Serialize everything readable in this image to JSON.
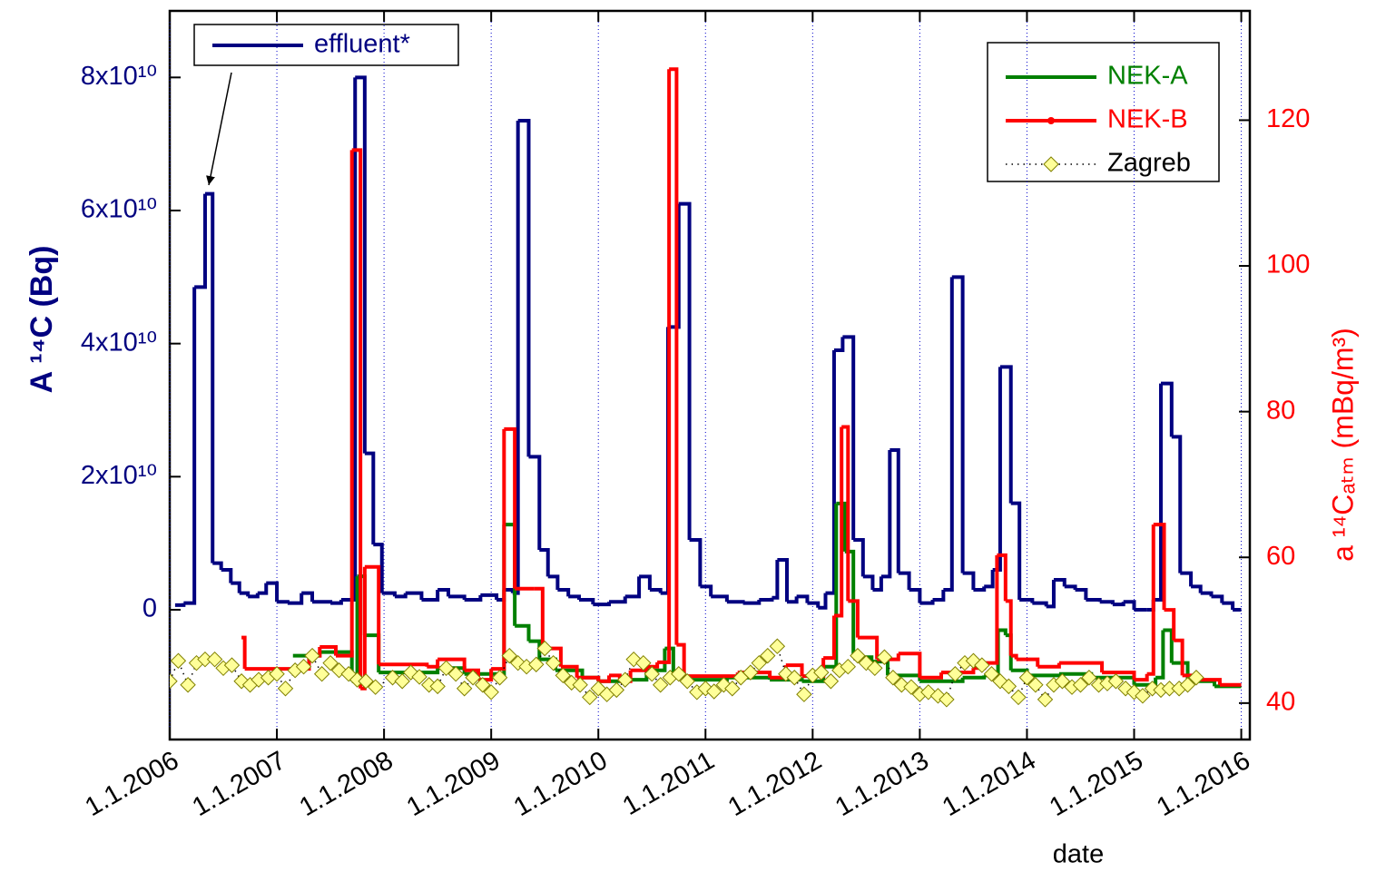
{
  "chart_data": {
    "type": "line",
    "xlabel": "date",
    "ylabel": "A ¹⁴C (Bq)",
    "y2label": "a ¹⁴Cₐₜₘ (mBq/m³)",
    "xlim": [
      2006,
      2016.08
    ],
    "xticks": [
      {
        "value": 2006,
        "label": "1.1.2006"
      },
      {
        "value": 2007,
        "label": "1.1.2007"
      },
      {
        "value": 2008,
        "label": "1.1.2008"
      },
      {
        "value": 2009,
        "label": "1.1.2009"
      },
      {
        "value": 2010,
        "label": "1.1.2010"
      },
      {
        "value": 2011,
        "label": "1.1.2011"
      },
      {
        "value": 2012,
        "label": "1.1.2012"
      },
      {
        "value": 2013,
        "label": "1.1.2013"
      },
      {
        "value": 2014,
        "label": "1.1.2014"
      },
      {
        "value": 2015,
        "label": "1.1.2015"
      },
      {
        "value": 2016,
        "label": "1.1.2016"
      }
    ],
    "ylim": [
      -19500000000.0,
      90000000000.0
    ],
    "yticks": [
      0,
      {
        "value": 20000000000.0,
        "label": "2x10¹⁰"
      },
      {
        "value": 40000000000.0,
        "label": "4x10¹⁰"
      },
      {
        "value": 60000000000.0,
        "label": "6x10¹⁰"
      },
      {
        "value": 80000000000.0,
        "label": "8x10¹⁰"
      }
    ],
    "y2lim": [
      35,
      135
    ],
    "y2ticks": [
      40,
      60,
      80,
      100,
      120
    ],
    "xgrid": true,
    "series": [
      {
        "name": "effluent*",
        "color": "#000080",
        "axis": "y",
        "line_style": "step",
        "x": [
          2006.05,
          2006.13,
          2006.23,
          2006.33,
          2006.4,
          2006.48,
          2006.57,
          2006.65,
          2006.73,
          2006.82,
          2006.9,
          2007.0,
          2007.1,
          2007.23,
          2007.33,
          2007.5,
          2007.6,
          2007.73,
          2007.82,
          2007.9,
          2007.98,
          2008.1,
          2008.2,
          2008.35,
          2008.5,
          2008.6,
          2008.75,
          2008.9,
          2009.05,
          2009.12,
          2009.2,
          2009.25,
          2009.35,
          2009.45,
          2009.53,
          2009.62,
          2009.72,
          2009.82,
          2009.95,
          2010.1,
          2010.25,
          2010.38,
          2010.48,
          2010.58,
          2010.65,
          2010.75,
          2010.85,
          2010.95,
          2011.05,
          2011.2,
          2011.35,
          2011.5,
          2011.62,
          2011.67,
          2011.76,
          2011.85,
          2011.95,
          2012.05,
          2012.12,
          2012.2,
          2012.28,
          2012.38,
          2012.47,
          2012.56,
          2012.64,
          2012.72,
          2012.8,
          2012.9,
          2013.0,
          2013.12,
          2013.22,
          2013.3,
          2013.4,
          2013.5,
          2013.6,
          2013.68,
          2013.75,
          2013.85,
          2013.93,
          2014.05,
          2014.18,
          2014.25,
          2014.35,
          2014.45,
          2014.55,
          2014.68,
          2014.8,
          2014.9,
          2015.0,
          2015.12,
          2015.18,
          2015.25,
          2015.35,
          2015.43,
          2015.53,
          2015.62,
          2015.72,
          2015.82,
          2015.92,
          2016.0
        ],
        "values": [
          700000000.0,
          1000000000.0,
          48500000000.0,
          62500000000.0,
          7000000000.0,
          6000000000.0,
          4000000000.0,
          2500000000.0,
          2000000000.0,
          2500000000.0,
          4000000000.0,
          1200000000.0,
          1000000000.0,
          2500000000.0,
          1200000000.0,
          1000000000.0,
          1500000000.0,
          80000000000.0,
          23500000000.0,
          9800000000.0,
          2500000000.0,
          2000000000.0,
          2500000000.0,
          1500000000.0,
          3000000000.0,
          2000000000.0,
          1500000000.0,
          2200000000.0,
          1500000000.0,
          3000000000.0,
          2500000000.0,
          73500000000.0,
          23000000000.0,
          9000000000.0,
          5000000000.0,
          3000000000.0,
          2000000000.0,
          1500000000.0,
          800000000.0,
          1200000000.0,
          2000000000.0,
          5000000000.0,
          3000000000.0,
          2500000000.0,
          42500000000.0,
          61000000000.0,
          10500000000.0,
          3500000000.0,
          2000000000.0,
          1200000000.0,
          1000000000.0,
          1500000000.0,
          1800000000.0,
          7500000000.0,
          1200000000.0,
          2000000000.0,
          1000000000.0,
          300000000.0,
          2500000000.0,
          39000000000.0,
          41000000000.0,
          10500000000.0,
          5000000000.0,
          3000000000.0,
          5000000000.0,
          24000000000.0,
          5500000000.0,
          3000000000.0,
          1000000000.0,
          1500000000.0,
          3000000000.0,
          50000000000.0,
          5500000000.0,
          3000000000.0,
          3500000000.0,
          6000000000.0,
          36500000000.0,
          16000000000.0,
          1500000000.0,
          1000000000.0,
          500000000.0,
          4500000000.0,
          3500000000.0,
          3000000000.0,
          1500000000.0,
          1200000000.0,
          800000000.0,
          1200000000.0,
          0,
          0,
          1500000000.0,
          34000000000.0,
          26000000000.0,
          5500000000.0,
          3500000000.0,
          2500000000.0,
          2000000000.0,
          1000000000.0,
          0,
          0
        ]
      },
      {
        "name": "NEK-A",
        "color": "#008000",
        "axis": "y2",
        "line_style": "step",
        "x": [
          2007.15,
          2007.4,
          2007.7,
          2007.75,
          2007.82,
          2007.95,
          2008.5,
          2008.75,
          2009.05,
          2009.12,
          2009.22,
          2009.35,
          2009.45,
          2009.6,
          2009.85,
          2010.0,
          2010.2,
          2010.45,
          2010.62,
          2010.7,
          2010.8,
          2011.2,
          2011.6,
          2011.9,
          2012.1,
          2012.22,
          2012.3,
          2012.38,
          2012.55,
          2012.7,
          2013.0,
          2013.4,
          2013.6,
          2013.73,
          2013.8,
          2013.85,
          2014.0,
          2014.3,
          2014.6,
          2015.0,
          2015.2,
          2015.27,
          2015.35,
          2015.5,
          2015.75,
          2016.0
        ],
        "values": [
          46.5,
          47,
          43,
          57.4,
          49.3,
          44.2,
          44.8,
          44,
          44,
          64.5,
          50.6,
          48.5,
          46,
          44.5,
          43.5,
          43,
          43.2,
          44.5,
          47.5,
          44,
          43.2,
          43.5,
          43.2,
          43,
          45,
          67.4,
          60.8,
          46.3,
          45.7,
          43.8,
          43,
          43.5,
          43.8,
          50,
          49.3,
          44.5,
          43.8,
          44,
          43.5,
          42.5,
          43.5,
          50,
          45.5,
          43,
          42.3,
          42.3
        ]
      },
      {
        "name": "NEK-B",
        "color": "#ff0000",
        "axis": "y2",
        "line_style": "step",
        "x": [
          2006.67,
          2006.7,
          2007.15,
          2007.3,
          2007.4,
          2007.55,
          2007.7,
          2007.78,
          2007.82,
          2007.95,
          2008.4,
          2008.5,
          2008.75,
          2008.88,
          2009.0,
          2009.12,
          2009.22,
          2009.4,
          2009.48,
          2009.65,
          2009.8,
          2010.0,
          2010.1,
          2010.2,
          2010.3,
          2010.45,
          2010.55,
          2010.66,
          2010.73,
          2010.8,
          2011.3,
          2011.6,
          2011.75,
          2011.9,
          2012.1,
          2012.2,
          2012.27,
          2012.33,
          2012.42,
          2012.6,
          2012.8,
          2013.0,
          2013.2,
          2013.5,
          2013.6,
          2013.72,
          2013.8,
          2013.85,
          2013.9,
          2014.1,
          2014.3,
          2014.7,
          2015.0,
          2015.12,
          2015.18,
          2015.28,
          2015.37,
          2015.45,
          2015.6,
          2015.8,
          2016.0
        ],
        "values": [
          49,
          44.7,
          44.7,
          46.5,
          47.7,
          46.5,
          115.9,
          42,
          58.7,
          45.3,
          45,
          46,
          44.5,
          43.2,
          44.7,
          77.6,
          55.7,
          55.7,
          47.5,
          45,
          43.5,
          43,
          43.8,
          43,
          44.5,
          45,
          45.6,
          127,
          48,
          43.7,
          44.2,
          43.5,
          45.2,
          43.7,
          46.2,
          52,
          77.9,
          54,
          49,
          46,
          46.8,
          43.5,
          44.2,
          44.8,
          45.5,
          60.3,
          54,
          46.5,
          46,
          45,
          45.5,
          44.2,
          43.2,
          44,
          64.5,
          52.8,
          48.6,
          43.8,
          43.2,
          42.5,
          42.5
        ]
      },
      {
        "name": "Zagreb",
        "color": "#ffff99",
        "axis": "y2",
        "line_style": "dotted",
        "marker": "diamond",
        "x": [
          2006.0,
          2006.08,
          2006.17,
          2006.25,
          2006.33,
          2006.42,
          2006.5,
          2006.58,
          2006.67,
          2006.75,
          2006.83,
          2006.92,
          2007.0,
          2007.08,
          2007.17,
          2007.25,
          2007.33,
          2007.42,
          2007.5,
          2007.58,
          2007.67,
          2007.75,
          2007.83,
          2007.92,
          2008.08,
          2008.17,
          2008.25,
          2008.33,
          2008.42,
          2008.5,
          2008.58,
          2008.67,
          2008.75,
          2008.83,
          2008.92,
          2009.0,
          2009.08,
          2009.17,
          2009.25,
          2009.33,
          2009.42,
          2009.5,
          2009.58,
          2009.67,
          2009.75,
          2009.83,
          2009.92,
          2010.0,
          2010.08,
          2010.17,
          2010.25,
          2010.33,
          2010.42,
          2010.5,
          2010.58,
          2010.67,
          2010.75,
          2010.83,
          2010.92,
          2011.0,
          2011.08,
          2011.17,
          2011.25,
          2011.33,
          2011.42,
          2011.5,
          2011.58,
          2011.67,
          2011.75,
          2011.83,
          2011.92,
          2012.0,
          2012.08,
          2012.17,
          2012.25,
          2012.33,
          2012.42,
          2012.5,
          2012.58,
          2012.67,
          2012.75,
          2012.83,
          2012.92,
          2013.0,
          2013.08,
          2013.17,
          2013.25,
          2013.33,
          2013.42,
          2013.5,
          2013.58,
          2013.67,
          2013.75,
          2013.83,
          2013.92,
          2014.0,
          2014.08,
          2014.17,
          2014.25,
          2014.33,
          2014.42,
          2014.5,
          2014.58,
          2014.67,
          2014.75,
          2014.83,
          2014.92,
          2015.0,
          2015.08,
          2015.17,
          2015.25,
          2015.33,
          2015.42,
          2015.5,
          2015.58
        ],
        "values": [
          43,
          45.8,
          42.5,
          45.5,
          46,
          46,
          44.8,
          45.2,
          43,
          42.5,
          43.2,
          43.5,
          44,
          42,
          44.5,
          45,
          46.5,
          44,
          45.5,
          44.5,
          44,
          43.2,
          43,
          42.2,
          43.5,
          43,
          44.2,
          43.6,
          42.5,
          42.3,
          44.8,
          44,
          42,
          43.5,
          42.5,
          41.5,
          43.5,
          46.5,
          45.5,
          45,
          45.3,
          47.5,
          45.5,
          43.8,
          42.8,
          42.5,
          40.8,
          42,
          41.2,
          41.8,
          43.2,
          46,
          45.5,
          44,
          42.5,
          43.5,
          44,
          43,
          41.5,
          42,
          41.6,
          42.5,
          42,
          43.5,
          44.2,
          45.5,
          46.5,
          47.8,
          44,
          43.5,
          41.2,
          43.8,
          44.2,
          43,
          44.5,
          45,
          46.5,
          45.5,
          44.8,
          46.3,
          43.5,
          42.5,
          42.2,
          41.2,
          41.5,
          41,
          40.5,
          44,
          45.5,
          45.8,
          45.2,
          44,
          43,
          42.3,
          40.8,
          43.5,
          42.5,
          40.5,
          42.5,
          43,
          42.2,
          42.5,
          43.5,
          42.5,
          42.7,
          43,
          42,
          41.5,
          41,
          42,
          41.8,
          42,
          42,
          42.5,
          43.5
        ]
      }
    ]
  }
}
